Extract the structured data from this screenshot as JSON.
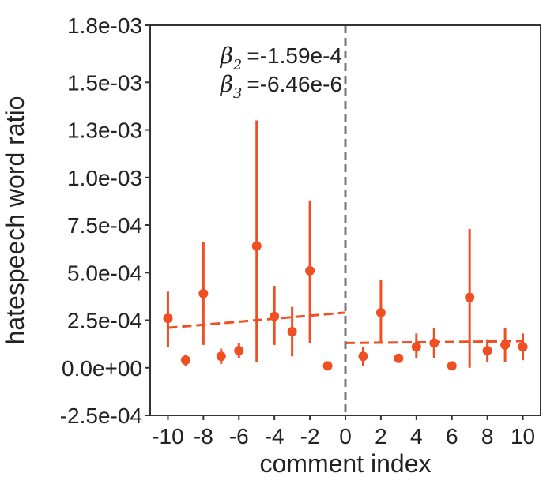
{
  "chart_data": {
    "type": "scatter",
    "xlabel": "comment index",
    "ylabel": "hatespeech word ratio",
    "xlim": [
      -11,
      11
    ],
    "ylim": [
      -0.00025,
      0.0018
    ],
    "x_ticks": [
      -10,
      -8,
      -6,
      -4,
      -2,
      0,
      2,
      4,
      6,
      8,
      10
    ],
    "x_tick_labels": [
      "-10",
      "-8",
      "-6",
      "-4",
      "-2",
      "0",
      "2",
      "4",
      "6",
      "8",
      "10"
    ],
    "y_ticks": [
      -0.00025,
      0.0,
      0.00025,
      0.0005,
      0.00075,
      0.001,
      0.00125,
      0.0015,
      0.0018
    ],
    "y_tick_labels": [
      "-2.5e-04",
      "0.0e+00",
      "2.5e-04",
      "5.0e-04",
      "7.5e-04",
      "1.0e-03",
      "1.3e-03",
      "1.5e-03",
      "1.8e-03"
    ],
    "grid": false,
    "color": "#f04e23",
    "points": [
      {
        "x": -10,
        "y": 0.00026,
        "lo": 0.00011,
        "hi": 0.0004
      },
      {
        "x": -9,
        "y": 4e-05,
        "lo": 1e-05,
        "hi": 7e-05
      },
      {
        "x": -8,
        "y": 0.00039,
        "lo": 0.00012,
        "hi": 0.00066
      },
      {
        "x": -7,
        "y": 6e-05,
        "lo": 2e-05,
        "hi": 0.0001
      },
      {
        "x": -6,
        "y": 9e-05,
        "lo": 5e-05,
        "hi": 0.00013
      },
      {
        "x": -5,
        "y": 0.00064,
        "lo": 3e-05,
        "hi": 0.0013
      },
      {
        "x": -4,
        "y": 0.00027,
        "lo": 0.00012,
        "hi": 0.00043
      },
      {
        "x": -3,
        "y": 0.00019,
        "lo": 6e-05,
        "hi": 0.00032
      },
      {
        "x": -2,
        "y": 0.00051,
        "lo": 0.00013,
        "hi": 0.00088
      },
      {
        "x": -1,
        "y": 1e-05,
        "lo": 1e-05,
        "hi": 1e-05
      },
      {
        "x": 1,
        "y": 6e-05,
        "lo": 1e-05,
        "hi": 0.00011
      },
      {
        "x": 2,
        "y": 0.00029,
        "lo": 0.00013,
        "hi": 0.00046
      },
      {
        "x": 3,
        "y": 5e-05,
        "lo": 5e-05,
        "hi": 5e-05
      },
      {
        "x": 4,
        "y": 0.00011,
        "lo": 5e-05,
        "hi": 0.00018
      },
      {
        "x": 5,
        "y": 0.00013,
        "lo": 5e-05,
        "hi": 0.00021
      },
      {
        "x": 6,
        "y": 1e-05,
        "lo": 1e-05,
        "hi": 1e-05
      },
      {
        "x": 7,
        "y": 0.00037,
        "lo": 0.0,
        "hi": 0.00073
      },
      {
        "x": 8,
        "y": 9e-05,
        "lo": 3e-05,
        "hi": 0.00015
      },
      {
        "x": 9,
        "y": 0.00012,
        "lo": 3e-05,
        "hi": 0.00021
      },
      {
        "x": 10,
        "y": 0.00011,
        "lo": 4e-05,
        "hi": 0.00018
      }
    ],
    "fit_lines": [
      {
        "x": [
          -10,
          0
        ],
        "y": [
          0.00021,
          0.00029
        ]
      },
      {
        "x": [
          0,
          10
        ],
        "y": [
          0.00013,
          0.00014
        ]
      }
    ],
    "cutoff_x": 0,
    "annotations": [
      {
        "symbol": "β",
        "subscript": "2",
        "text": "=-1.59e-4"
      },
      {
        "symbol": "β",
        "subscript": "3",
        "text": "=-6.46e-6"
      }
    ]
  }
}
